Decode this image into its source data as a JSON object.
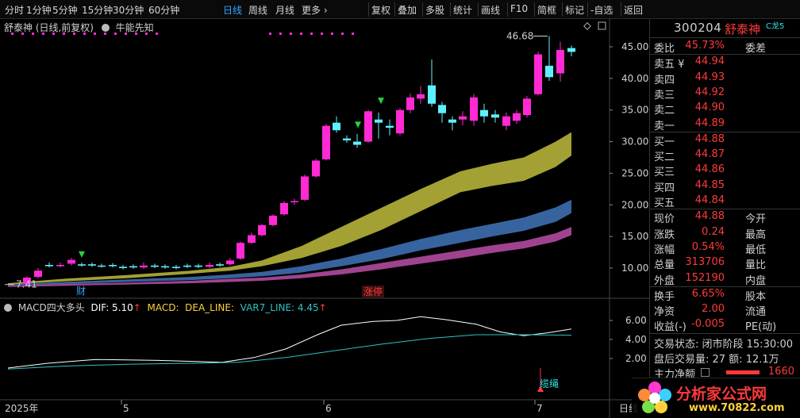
{
  "toolbar": {
    "left": [
      "分时",
      "1分钟",
      "5分钟",
      "15分钟",
      "30分钟",
      "60分钟",
      "日线",
      "周线",
      "月线",
      "更多 ›"
    ],
    "active_index": 6,
    "right": [
      "复权",
      "叠加",
      "多股",
      "统计",
      "画线",
      "F10",
      "简框",
      "标记",
      "-自选",
      "返回"
    ]
  },
  "chart": {
    "title": "舒泰神 (日线,前复权)",
    "indicator_name": "牛能先知",
    "max_label": "46.68",
    "min_label": "7.41",
    "event_cai": "财",
    "event_zhangting": "涨停",
    "price_axis": [
      "45.00",
      "40.00",
      "35.00",
      "30.00",
      "25.00",
      "20.00",
      "15.00",
      "10.00"
    ],
    "macd_axis": [
      "6.00",
      "4.00",
      "2.00"
    ],
    "date_axis": [
      "2025年",
      "5",
      "6",
      "7",
      "日线"
    ],
    "lanshen_label": "缆绳",
    "colors": {
      "up": "#ff2ad4",
      "down": "#5ff0ff",
      "band_yellow": "#b5b33a",
      "band_blue": "#3d6fb0",
      "band_magenta": "#b04aa0",
      "dif": "#ffffff",
      "dea": "#2ec2c2"
    }
  },
  "macd": {
    "title": "MACD四大多头",
    "dif_label": "DIF: 5.10",
    "macd_label": "MACD:",
    "dea_label": "DEA_LINE:",
    "var7_label": "VAR7_LINE: 4.45"
  },
  "quote": {
    "code": "300204",
    "name": "舒泰神",
    "tag": "C龙5",
    "weibi_label": "委比",
    "weibi": "45.73%",
    "weicha_label": "委差",
    "sells": [
      {
        "label": "卖五 ¥",
        "price": "44.94"
      },
      {
        "label": "卖四",
        "price": "44.93"
      },
      {
        "label": "卖三",
        "price": "44.92"
      },
      {
        "label": "卖二",
        "price": "44.90"
      },
      {
        "label": "卖一",
        "price": "44.89"
      }
    ],
    "buys": [
      {
        "label": "买一",
        "price": "44.88"
      },
      {
        "label": "买二",
        "price": "44.87"
      },
      {
        "label": "买三",
        "price": "44.86"
      },
      {
        "label": "买四",
        "price": "44.85"
      },
      {
        "label": "买五",
        "price": "44.84"
      }
    ],
    "stats": [
      {
        "label": "现价",
        "value": "44.88",
        "label2": "今开"
      },
      {
        "label": "涨跌",
        "value": "0.24",
        "label2": "最高"
      },
      {
        "label": "涨幅",
        "value": "0.54%",
        "label2": "最低"
      },
      {
        "label": "总量",
        "value": "313706",
        "label2": "量比"
      },
      {
        "label": "外盘",
        "value": "152190",
        "label2": "内盘"
      }
    ],
    "extra": [
      {
        "label": "换手",
        "value": "6.65%",
        "label2": "股本"
      },
      {
        "label": "净资",
        "value": "2.00",
        "label2": "流通"
      },
      {
        "label": "收益(-)",
        "value": "-0.005",
        "label2": "PE(动)"
      }
    ],
    "status_label": "交易状态: 闭市阶段 15:30:00",
    "after_label": "盘后交易量: 27  额: 12.1万",
    "mainflow_label": "主力净额",
    "mainflow_value": "1660"
  },
  "watermark": {
    "title": "分析家公式网",
    "url": "www.70822.com"
  }
}
